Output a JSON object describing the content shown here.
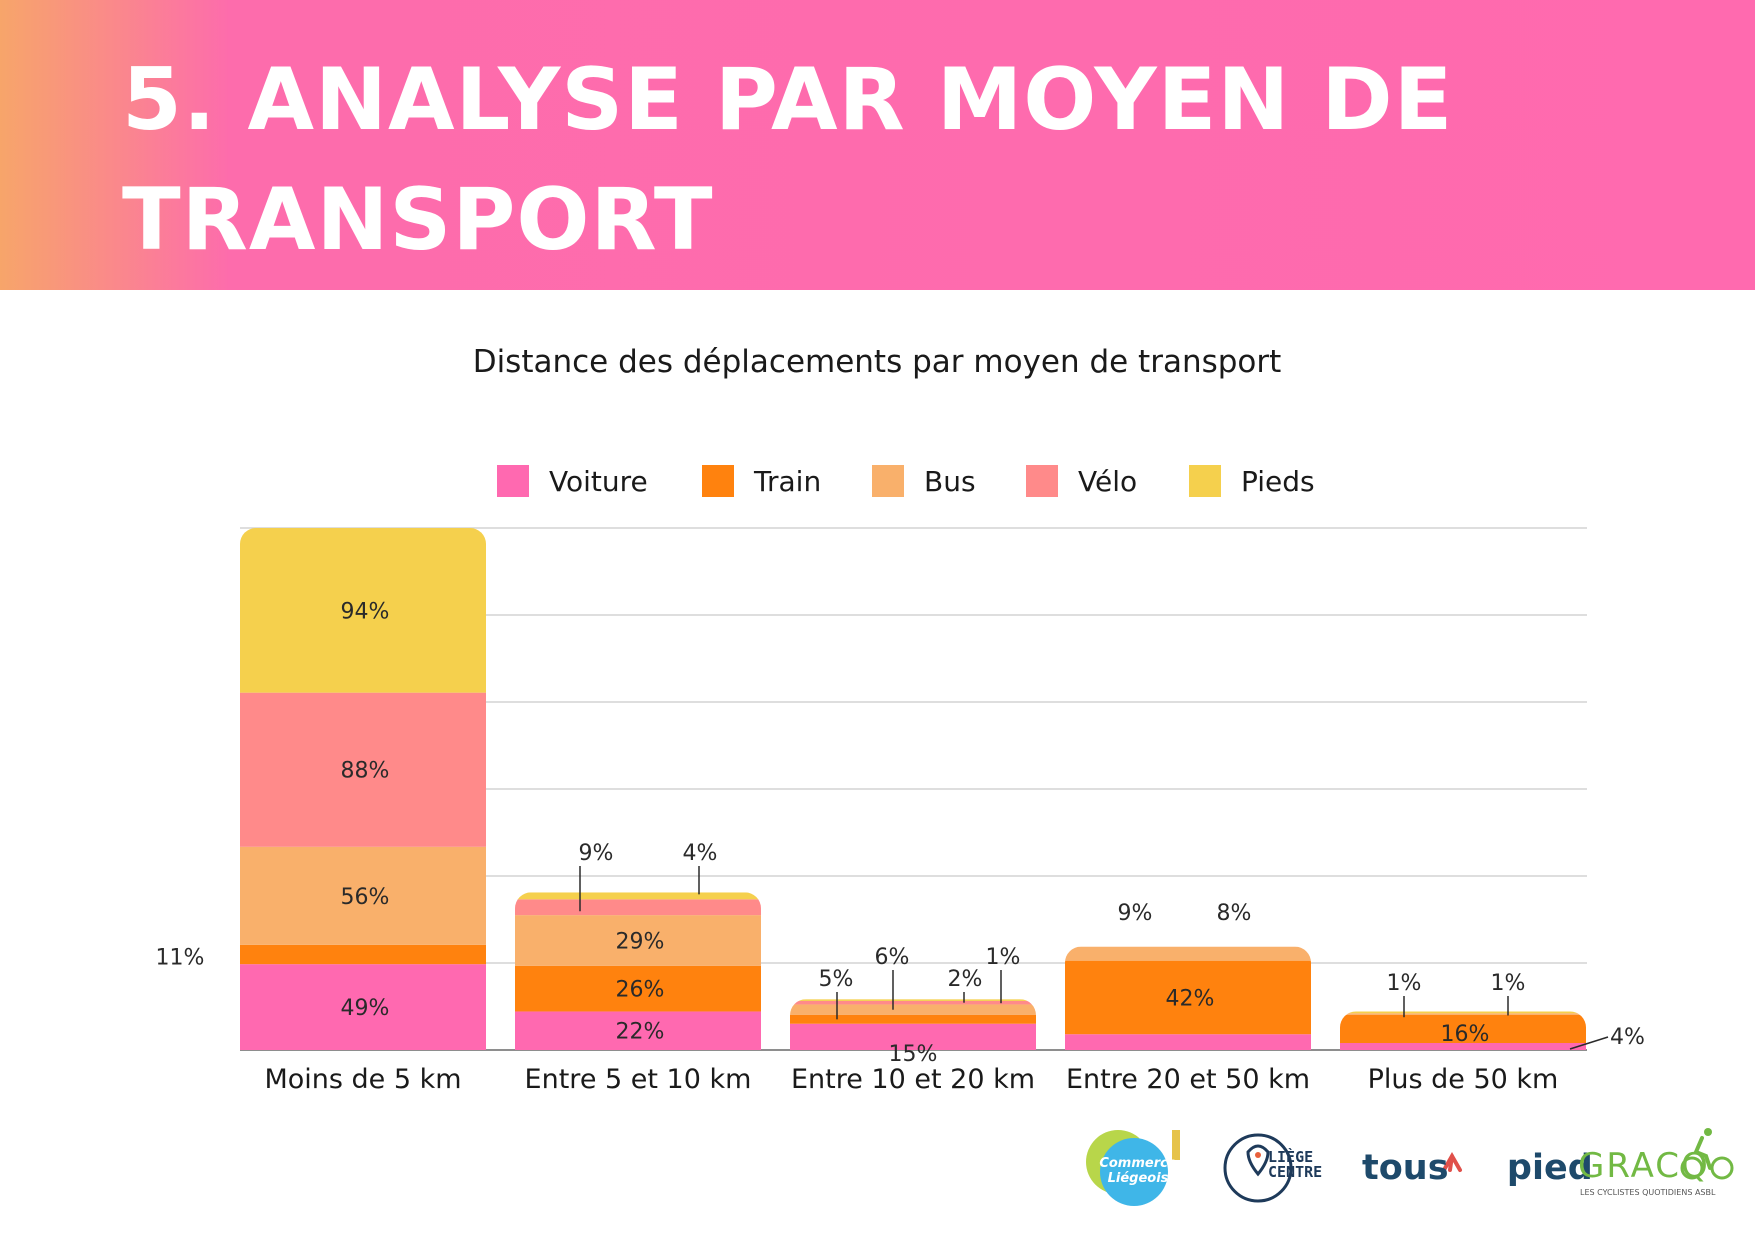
{
  "page": {
    "title_line1": "5. ANALYSE PAR MOYEN DE",
    "title_line2": "TRANSPORT"
  },
  "colors": {
    "banner": "#ff6aaf",
    "voiture": "#ff69b0",
    "train": "#ff820e",
    "bus": "#f9b06b",
    "velo": "#ff8a8a",
    "pieds": "#f5d04d"
  },
  "chart_data": {
    "type": "bar",
    "stacked": true,
    "title": "Distance des déplacements par moyen de transport",
    "categories": [
      "Moins de 5 km",
      "Entre 5 et 10 km",
      "Entre 10 et 20 km",
      "Entre 20 et 50 km",
      "Plus de 50 km"
    ],
    "series": [
      {
        "name": "Voiture",
        "color": "#ff69b0",
        "values": [
          49,
          22,
          15,
          9,
          4
        ]
      },
      {
        "name": "Train",
        "color": "#ff820e",
        "values": [
          11,
          26,
          5,
          42,
          16
        ]
      },
      {
        "name": "Bus",
        "color": "#f9b06b",
        "values": [
          56,
          29,
          6,
          8,
          1
        ]
      },
      {
        "name": "Vélo",
        "color": "#ff8a8a",
        "values": [
          88,
          9,
          2,
          0,
          0
        ]
      },
      {
        "name": "Pieds",
        "color": "#f5d04d",
        "values": [
          94,
          4,
          1,
          0,
          1
        ]
      }
    ],
    "labels": [
      [
        "49%",
        "11%",
        "56%",
        "88%",
        "94%"
      ],
      [
        "22%",
        "26%",
        "29%",
        "9%",
        "4%"
      ],
      [
        "15%",
        "5%",
        "6%",
        "2%",
        "1%"
      ],
      [
        "9%",
        "42%",
        "8%",
        "",
        ""
      ],
      [
        "4%",
        "16%",
        "1%",
        "",
        "1%"
      ]
    ],
    "legend_position": "top",
    "grid": true
  },
  "logos": {
    "commerce": [
      "Commerce",
      "Liégeois"
    ],
    "liege": [
      "LIÈGE",
      "CENTRE"
    ],
    "tous": "tous",
    "pied": "pied",
    "gracq": "GRACQ",
    "gracq_sub": "LES CYCLISTES QUOTIDIENS ASBL"
  }
}
